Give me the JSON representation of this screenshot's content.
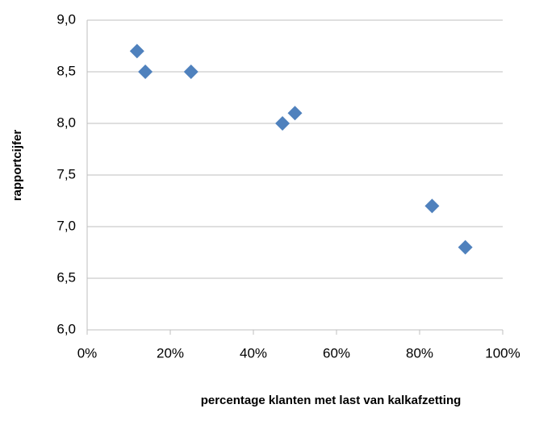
{
  "chart_data": {
    "type": "scatter",
    "xlabel": "percentage klanten met last van kalkafzetting",
    "ylabel": "rapportcijfer",
    "x": [
      12,
      14,
      25,
      47,
      50,
      83,
      91
    ],
    "values": [
      8.7,
      8.5,
      8.5,
      8.0,
      8.1,
      7.2,
      6.8
    ],
    "color": "#4f81bd",
    "xlim": [
      0,
      100
    ],
    "xticks": [
      {
        "value": 0,
        "label": "0%"
      },
      {
        "value": 20,
        "label": "20%"
      },
      {
        "value": 40,
        "label": "40%"
      },
      {
        "value": 60,
        "label": "60%"
      },
      {
        "value": 80,
        "label": "80%"
      },
      {
        "value": 100,
        "label": "100%"
      }
    ],
    "ylim": [
      6,
      9
    ],
    "yticks": [
      {
        "value": 6,
        "label": "6,0"
      },
      {
        "value": 6.5,
        "label": "6,5"
      },
      {
        "value": 7,
        "label": "7,0"
      },
      {
        "value": 7.5,
        "label": "7,5"
      },
      {
        "value": 8,
        "label": "8,0"
      },
      {
        "value": 8.5,
        "label": "8,5"
      },
      {
        "value": 9,
        "label": "9,0"
      }
    ],
    "grid": true
  }
}
